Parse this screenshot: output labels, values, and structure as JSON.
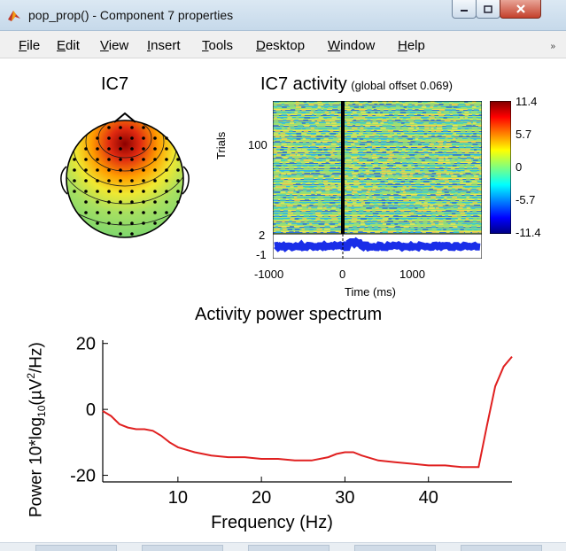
{
  "window": {
    "title": "pop_prop() - Component 7 properties",
    "controls": [
      "minimize",
      "maximize",
      "close"
    ]
  },
  "menu": {
    "items": [
      "File",
      "Edit",
      "View",
      "Insert",
      "Tools",
      "Desktop",
      "Window",
      "Help"
    ],
    "overflow_glyph": "»"
  },
  "topoplot": {
    "title": "IC7"
  },
  "erp_image": {
    "title": "IC7 activity",
    "subtitle": "(global offset 0.069)",
    "ylabel": "Trials",
    "trial_tick": "100",
    "colorbar_ticks": [
      "11.4",
      "5.7",
      "0",
      "-5.7",
      "-11.4"
    ],
    "erp_yticks": [
      "2",
      "-1"
    ],
    "xticks": [
      "-1000",
      "0",
      "1000"
    ],
    "xlabel": "Time (ms)"
  },
  "spectrum": {
    "title": "Activity power spectrum",
    "ylabel_parts": [
      "Power 10*log",
      "10",
      "(µV",
      "2",
      "/Hz)"
    ],
    "xlabel": "Frequency (Hz)",
    "line_color": "#e02020"
  },
  "chart_data": {
    "type": "line",
    "title": "Activity power spectrum",
    "xlabel": "Frequency (Hz)",
    "ylabel": "Power 10*log10(µV²/Hz)",
    "xlim": [
      1,
      50
    ],
    "ylim": [
      -22,
      21
    ],
    "xticks": [
      10,
      20,
      30,
      40
    ],
    "yticks": [
      20,
      0,
      -20
    ],
    "series": [
      {
        "x": [
          1,
          2,
          3,
          4,
          5,
          6,
          7,
          8,
          9,
          10,
          12,
          14,
          16,
          18,
          20,
          22,
          24,
          26,
          28,
          29,
          30,
          31,
          32,
          34,
          36,
          38,
          40,
          42,
          44,
          46,
          47,
          48,
          49,
          50
        ],
        "y": [
          -0.5,
          -2,
          -4.5,
          -5.5,
          -6,
          -6,
          -6.5,
          -8,
          -10,
          -11.5,
          -13,
          -14,
          -14.5,
          -14.5,
          -15,
          -15,
          -15.5,
          -15.5,
          -14.5,
          -13.5,
          -13,
          -13,
          -14,
          -15.5,
          -16,
          -16.5,
          -17,
          -17,
          -17.5,
          -17.5,
          -5,
          7,
          13,
          16
        ]
      }
    ]
  }
}
